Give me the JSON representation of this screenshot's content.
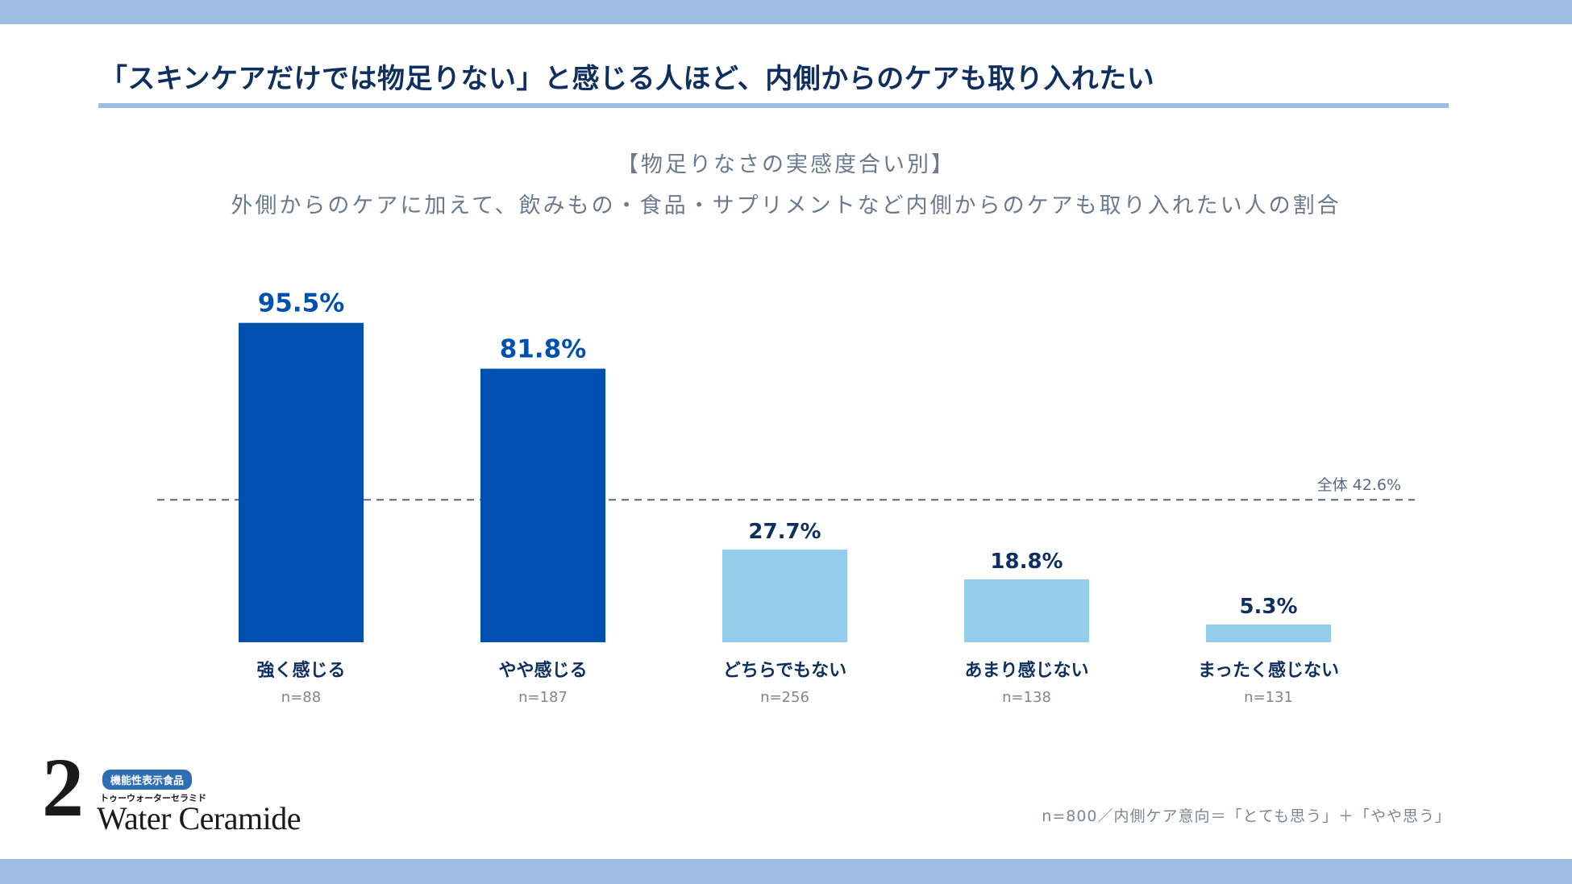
{
  "title": "「スキンケアだけでは物足りない」と感じる人ほど、内側からのケアも取り入れたい",
  "subtitle_bracket": "【物足りなさの実感度合い別】",
  "subtitle": "外側からのケアに加えて、飲みもの・食品・サプリメントなど内側からのケアも取り入れたい人の割合",
  "logo": {
    "badge": "機能性表示食品",
    "kana": "トゥーウォーターセラミド",
    "numeral": "2",
    "wordmark": "Water Ceramide"
  },
  "footnote": "n=800／内側ケア意向＝「とても思う」＋「やや思う」",
  "colors": {
    "band": "#9fbde2",
    "dark_bar": "#0050b0",
    "light_bar": "#94cdec",
    "dark_label": "#0050b0",
    "light_label": "#0f2f5e",
    "reference_line": "#5b6a7a"
  },
  "chart_data": {
    "type": "bar",
    "categories": [
      "強く感じる",
      "やや感じる",
      "どちらでもない",
      "あまり感じない",
      "まったく感じない"
    ],
    "sample_sizes": [
      "n=88",
      "n=187",
      "n=256",
      "n=138",
      "n=131"
    ],
    "values": [
      95.5,
      81.8,
      27.7,
      18.8,
      5.3
    ],
    "value_labels": [
      "95.5%",
      "81.8%",
      "27.7%",
      "18.8%",
      "5.3%"
    ],
    "highlight": [
      true,
      true,
      false,
      false,
      false
    ],
    "reference_line": {
      "value": 42.6,
      "label": "全体 42.6%",
      "style": "dashed"
    },
    "ylim": [
      0,
      100
    ],
    "grid": false,
    "xlabel": "",
    "ylabel": ""
  }
}
